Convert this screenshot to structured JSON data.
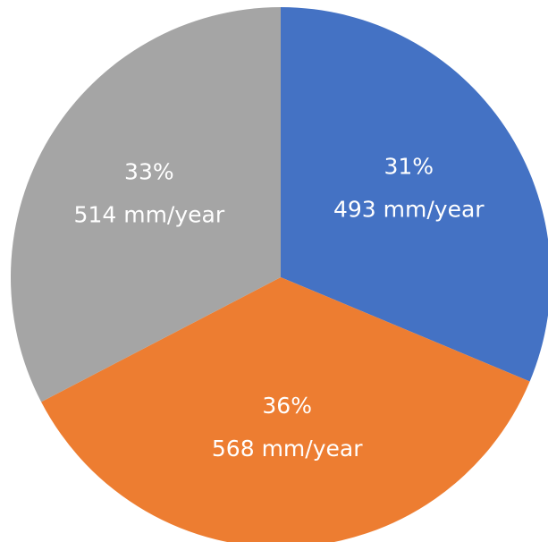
{
  "chart_data": {
    "type": "pie",
    "title": "",
    "start_angle_deg": 0,
    "direction": "clockwise",
    "slices": [
      {
        "percent_label": "31%",
        "value_label": "493 mm/year",
        "percent": 31,
        "value": 493,
        "color": "#4472c4"
      },
      {
        "percent_label": "36%",
        "value_label": "568 mm/year",
        "percent": 36,
        "value": 568,
        "color": "#ed7d31"
      },
      {
        "percent_label": "33%",
        "value_label": "514 mm/year",
        "percent": 33,
        "value": 514,
        "color": "#a5a5a5"
      }
    ]
  }
}
